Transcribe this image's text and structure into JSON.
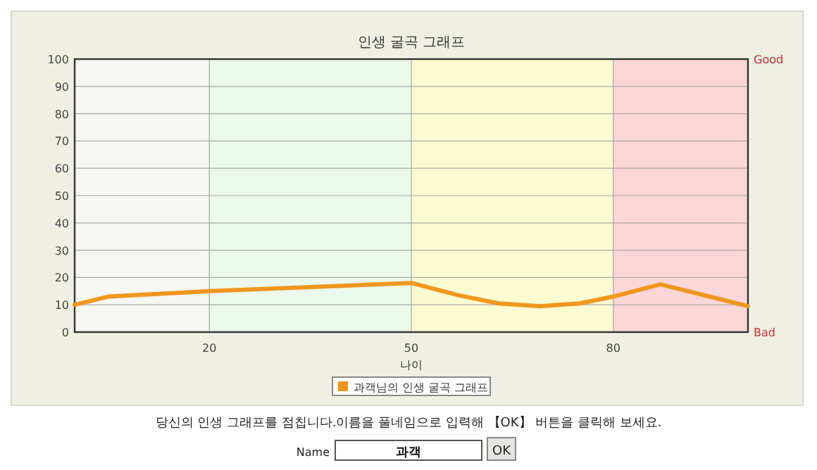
{
  "chart_data": {
    "type": "line",
    "title": "인생 굴곡 그래프",
    "xlabel": "나이",
    "x": [
      0,
      5,
      20,
      50,
      57,
      63,
      69,
      75,
      80,
      87,
      100
    ],
    "series": [
      {
        "name": "과객님의 인생 굴곡 그래프",
        "color": "#f0961e",
        "values": [
          10,
          13,
          15,
          18,
          13.5,
          10.5,
          9.5,
          10.5,
          13,
          17.5,
          9.5
        ]
      }
    ],
    "xlim": [
      0,
      100
    ],
    "xticks": [
      20,
      50,
      80
    ],
    "ylim": [
      0,
      100
    ],
    "yticks": [
      0,
      10,
      20,
      30,
      40,
      50,
      60,
      70,
      80,
      90,
      100
    ],
    "bands": [
      {
        "axis": "x",
        "from": 0,
        "to": 20,
        "color": "#f6f6f2"
      },
      {
        "axis": "x",
        "from": 20,
        "to": 50,
        "color": "#ebf8eb"
      },
      {
        "axis": "x",
        "from": 50,
        "to": 80,
        "color": "#fbfbd2"
      },
      {
        "axis": "x",
        "from": 80,
        "to": 100,
        "color": "#fbd6d6"
      }
    ],
    "grid": true,
    "legend": "bottom",
    "marker": "none",
    "line_style": "solid",
    "annotations": [
      "당신의 인생 그래프를 점칩니다.이름을 풀네임으로 입력해 【OK】 버튼을 클릭해 보세요.",
      "Name",
      "과객",
      "OK",
      "Good",
      "Bad"
    ]
  }
}
